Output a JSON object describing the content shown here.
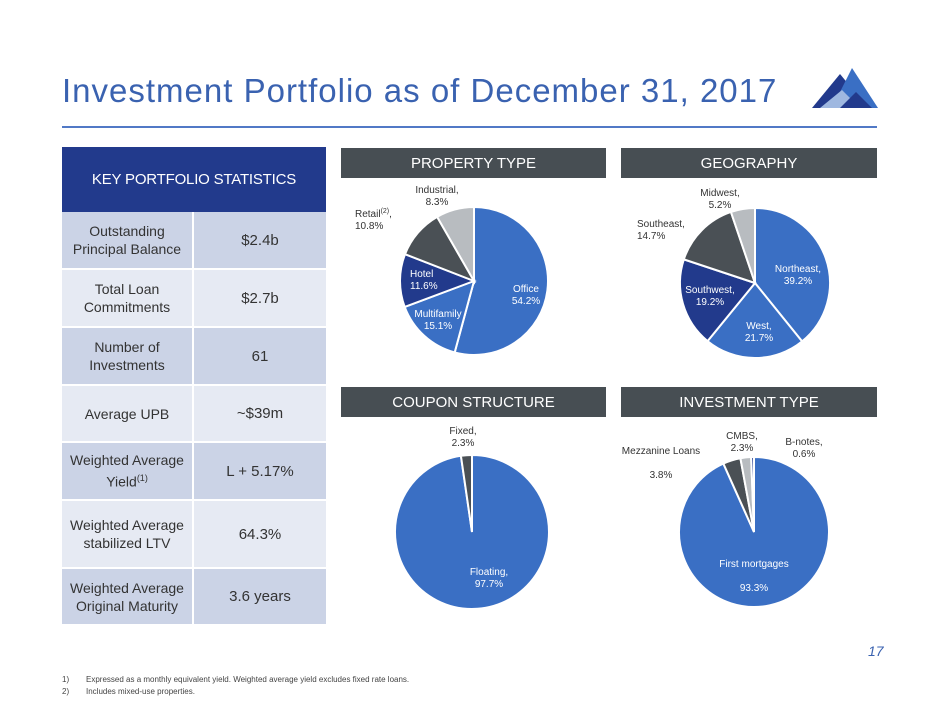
{
  "header": {
    "title": "Investment Portfolio as of December 31, 2017",
    "page_number": "17"
  },
  "stats": {
    "heading": "KEY PORTFOLIO STATISTICS",
    "rows": [
      {
        "label": "Outstanding Principal Balance",
        "value": "$2.4b"
      },
      {
        "label": "Total Loan Commitments",
        "value": "$2.7b"
      },
      {
        "label": "Number of Investments",
        "value": "61"
      },
      {
        "label": "Average UPB",
        "value": "~$39m"
      },
      {
        "label": "Weighted Average Yield",
        "label_sup": "(1)",
        "value": "L + 5.17%"
      },
      {
        "label": "Weighted Average stabilized LTV",
        "value": "64.3%"
      },
      {
        "label": "Weighted Average Original Maturity",
        "value": "3.6 years"
      }
    ]
  },
  "panels": {
    "property_type": "PROPERTY TYPE",
    "geography": "GEOGRAPHY",
    "coupon_structure": "COUPON STRUCTURE",
    "investment_type": "INVESTMENT TYPE"
  },
  "footnotes": [
    {
      "num": "1)",
      "text": "Expressed as a monthly equivalent yield. Weighted average yield excludes fixed rate loans."
    },
    {
      "num": "2)",
      "text": "Includes mixed-use properties."
    }
  ],
  "chart_data": [
    {
      "type": "pie",
      "title": "PROPERTY TYPE",
      "slices": [
        {
          "name": "Office",
          "value": 54.2,
          "label": "54.2%",
          "color": "#3a6fc4"
        },
        {
          "name": "Multifamily",
          "value": 15.1,
          "label": "15.1%",
          "color": "#3a6fc4"
        },
        {
          "name": "Hotel",
          "value": 11.6,
          "label": "11.6%",
          "color": "#223a8c"
        },
        {
          "name": "Retail",
          "name_sup": "(2)",
          "value": 10.8,
          "label": "10.8%",
          "color": "#4a5055"
        },
        {
          "name": "Industrial",
          "value": 8.3,
          "label": "8.3%",
          "color": "#b8bcc0"
        }
      ]
    },
    {
      "type": "pie",
      "title": "GEOGRAPHY",
      "slices": [
        {
          "name": "Northeast",
          "value": 39.2,
          "label": "39.2%",
          "color": "#3a6fc4"
        },
        {
          "name": "West",
          "value": 21.7,
          "label": "21.7%",
          "color": "#3a6fc4"
        },
        {
          "name": "Southwest",
          "value": 19.2,
          "label": "19.2%",
          "color": "#223a8c"
        },
        {
          "name": "Southeast",
          "value": 14.7,
          "label": "14.7%",
          "color": "#4a5055"
        },
        {
          "name": "Midwest",
          "value": 5.2,
          "label": "5.2%",
          "color": "#b8bcc0"
        }
      ]
    },
    {
      "type": "pie",
      "title": "COUPON STRUCTURE",
      "slices": [
        {
          "name": "Floating",
          "value": 97.7,
          "label": "97.7%",
          "color": "#3a6fc4"
        },
        {
          "name": "Fixed",
          "value": 2.3,
          "label": "2.3%",
          "color": "#4a5055"
        }
      ]
    },
    {
      "type": "pie",
      "title": "INVESTMENT TYPE",
      "slices": [
        {
          "name": "First mortgages",
          "value": 93.3,
          "label": "93.3%",
          "color": "#3a6fc4"
        },
        {
          "name": "Mezzanine Loans",
          "value": 3.8,
          "label": "3.8%",
          "color": "#4a5055"
        },
        {
          "name": "CMBS",
          "value": 2.3,
          "label": "2.3%",
          "color": "#b8bcc0"
        },
        {
          "name": "B-notes",
          "value": 0.6,
          "label": "0.6%",
          "color": "#223a8c"
        }
      ]
    }
  ]
}
